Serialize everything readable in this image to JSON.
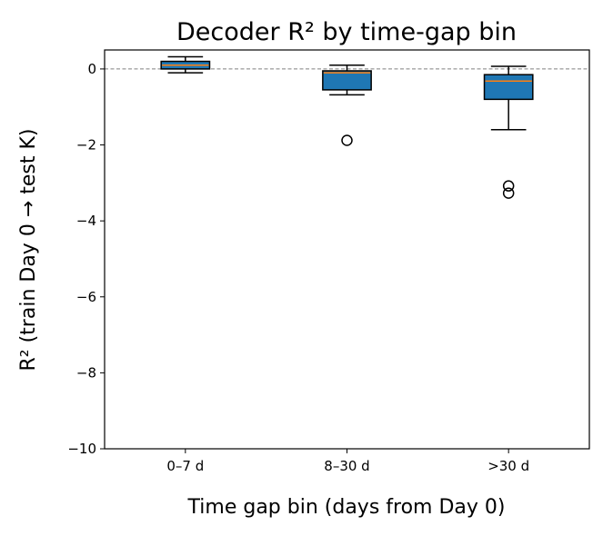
{
  "chart_data": {
    "type": "box",
    "title": "Decoder R² by time-gap bin",
    "xlabel": "Time gap bin (days from Day 0)",
    "ylabel": "R² (train Day 0 → test K)",
    "categories": [
      "0–7 d",
      "8–30 d",
      ">30 d"
    ],
    "ylim": [
      -10,
      0.5
    ],
    "yticks": [
      0,
      -2,
      -4,
      -6,
      -8,
      -10
    ],
    "ytick_labels": [
      "0",
      "−2",
      "−4",
      "−6",
      "−8",
      "−10"
    ],
    "reference_line": {
      "y": 0,
      "style": "dashed",
      "color": "#808080"
    },
    "grid": false,
    "boxes": [
      {
        "whisker_low": -0.1,
        "q1": 0.0,
        "median": 0.1,
        "q3": 0.2,
        "whisker_high": 0.32,
        "outliers": []
      },
      {
        "whisker_low": -0.68,
        "q1": -0.55,
        "median": -0.1,
        "q3": -0.05,
        "whisker_high": 0.1,
        "outliers": [
          -1.88
        ]
      },
      {
        "whisker_low": -1.6,
        "q1": -0.8,
        "median": -0.32,
        "q3": -0.15,
        "whisker_high": 0.07,
        "outliers": [
          -3.08,
          -3.27
        ]
      }
    ],
    "colors": {
      "box_fill": "#1f77b4",
      "median": "#ff7f0e",
      "edge": "#000000"
    }
  }
}
